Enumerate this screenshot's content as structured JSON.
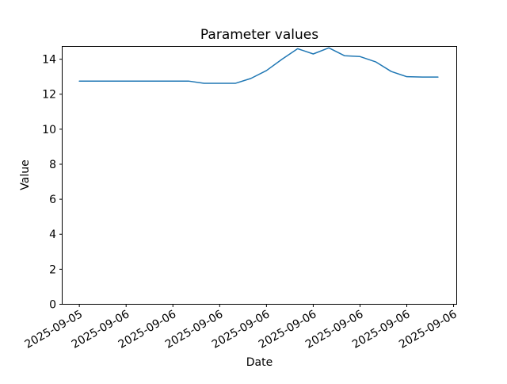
{
  "figure": {
    "background": "#ffffff",
    "text_color": "#000000",
    "spine_color": "#000000"
  },
  "chart_data": {
    "type": "line",
    "title": "Parameter values",
    "xlabel": "Date",
    "ylabel": "Value",
    "line_color": "#1f77b4",
    "line_width": 1.5,
    "grid": false,
    "legend_position": "none",
    "x_hours": [
      0,
      1,
      2,
      3,
      4,
      5,
      6,
      7,
      8,
      9,
      10,
      11,
      12,
      13,
      14,
      15,
      16,
      17,
      18,
      19,
      20,
      21,
      22,
      23
    ],
    "values": [
      12.75,
      12.75,
      12.75,
      12.75,
      12.75,
      12.75,
      12.75,
      12.75,
      12.62,
      12.62,
      12.62,
      12.9,
      13.35,
      14.0,
      14.6,
      14.3,
      14.65,
      14.2,
      14.15,
      13.85,
      13.3,
      13.0,
      12.98,
      12.98
    ],
    "x_tick_hours": [
      0,
      3,
      6,
      9,
      12,
      15,
      18,
      21,
      24
    ],
    "x_tick_labels": [
      "2025-09-05",
      "2025-09-06",
      "2025-09-06",
      "2025-09-06",
      "2025-09-06",
      "2025-09-06",
      "2025-09-06",
      "2025-09-06",
      "2025-09-06"
    ],
    "x_tick_rotation_deg": 30,
    "y_ticks": [
      0,
      2,
      4,
      6,
      8,
      10,
      12,
      14
    ],
    "y_tick_labels": [
      "0",
      "2",
      "4",
      "6",
      "8",
      "10",
      "12",
      "14"
    ],
    "xlim_hours": [
      -1.1,
      24.2
    ],
    "ylim": [
      0,
      14.73
    ]
  }
}
